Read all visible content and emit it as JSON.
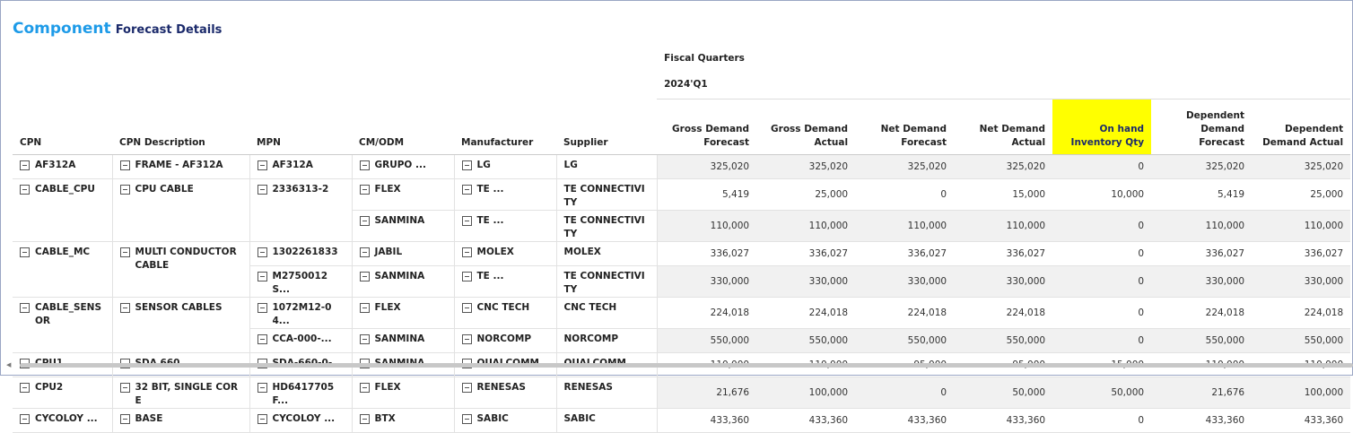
{
  "header": {
    "title_main": "Component",
    "title_sub": "Forecast Details"
  },
  "table": {
    "group_label": "Fiscal Quarters",
    "quarter": "2024'Q1",
    "columns": [
      "CPN",
      "CPN Description",
      "MPN",
      "CM/ODM",
      "Manufacturer",
      "Supplier",
      "Gross Demand Forecast",
      "Gross Demand Actual",
      "Net Demand Forecast",
      "Net Demand Actual",
      "On hand Inventory Qty",
      "Dependent Demand Forecast",
      "Dependent Demand Actual"
    ],
    "highlight_column": 10,
    "groups": [
      {
        "cpn": "AF312A",
        "description": "FRAME - AF312A",
        "mpns": [
          {
            "mpn": "AF312A",
            "rows": [
              {
                "cm": "GRUPO ...",
                "manufacturer": "LG",
                "supplier": "LG",
                "values": [
                  "325,020",
                  "325,020",
                  "325,020",
                  "325,020",
                  "0",
                  "325,020",
                  "325,020"
                ]
              }
            ]
          }
        ]
      },
      {
        "cpn": "CABLE_CPU",
        "description": "CPU CABLE",
        "mpns": [
          {
            "mpn": "2336313-2",
            "rows": [
              {
                "cm": "FLEX",
                "manufacturer": "TE ...",
                "supplier": "TE CONNECTIVITY",
                "values": [
                  "5,419",
                  "25,000",
                  "0",
                  "15,000",
                  "10,000",
                  "5,419",
                  "25,000"
                ]
              },
              {
                "cm": "SANMINA",
                "manufacturer": "TE ...",
                "supplier": "TE CONNECTIVITY",
                "values": [
                  "110,000",
                  "110,000",
                  "110,000",
                  "110,000",
                  "0",
                  "110,000",
                  "110,000"
                ]
              }
            ]
          }
        ]
      },
      {
        "cpn": "CABLE_MC",
        "description": "MULTI CONDUCTOR CABLE",
        "mpns": [
          {
            "mpn": "1302261833",
            "rows": [
              {
                "cm": "JABIL",
                "manufacturer": "MOLEX",
                "supplier": "MOLEX",
                "values": [
                  "336,027",
                  "336,027",
                  "336,027",
                  "336,027",
                  "0",
                  "336,027",
                  "336,027"
                ]
              }
            ]
          },
          {
            "mpn": "M2750012S...",
            "rows": [
              {
                "cm": "SANMINA",
                "manufacturer": "TE ...",
                "supplier": "TE CONNECTIVITY",
                "values": [
                  "330,000",
                  "330,000",
                  "330,000",
                  "330,000",
                  "0",
                  "330,000",
                  "330,000"
                ]
              }
            ]
          }
        ]
      },
      {
        "cpn": "CABLE_SENSOR",
        "description": "SENSOR CABLES",
        "mpns": [
          {
            "mpn": "1072M12-04...",
            "rows": [
              {
                "cm": "FLEX",
                "manufacturer": "CNC TECH",
                "supplier": "CNC TECH",
                "values": [
                  "224,018",
                  "224,018",
                  "224,018",
                  "224,018",
                  "0",
                  "224,018",
                  "224,018"
                ]
              }
            ]
          },
          {
            "mpn": "CCA-000-...",
            "rows": [
              {
                "cm": "SANMINA",
                "manufacturer": "NORCOMP",
                "supplier": "NORCOMP",
                "values": [
                  "550,000",
                  "550,000",
                  "550,000",
                  "550,000",
                  "0",
                  "550,000",
                  "550,000"
                ]
              }
            ]
          }
        ]
      },
      {
        "cpn": "CPU1",
        "description": "SDA 660 ...",
        "mpns": [
          {
            "mpn": "SDA-660-0-...",
            "rows": [
              {
                "cm": "SANMINA",
                "manufacturer": "QUALCOMM",
                "supplier": "QUALCOMM",
                "values": [
                  "110,000",
                  "110,000",
                  "95,000",
                  "95,000",
                  "15,000",
                  "110,000",
                  "110,000"
                ]
              }
            ]
          }
        ]
      },
      {
        "cpn": "CPU2",
        "description": "32 BIT, SINGLE CORE",
        "mpns": [
          {
            "mpn": "HD6417705F...",
            "rows": [
              {
                "cm": "FLEX",
                "manufacturer": "RENESAS",
                "supplier": "RENESAS",
                "values": [
                  "21,676",
                  "100,000",
                  "0",
                  "50,000",
                  "50,000",
                  "21,676",
                  "100,000"
                ]
              }
            ]
          }
        ]
      },
      {
        "cpn": "CYCOLOY ...",
        "description": "BASE",
        "mpns": [
          {
            "mpn": "CYCOLOY ...",
            "rows": [
              {
                "cm": "BTX",
                "manufacturer": "SABIC",
                "supplier": "SABIC",
                "values": [
                  "433,360",
                  "433,360",
                  "433,360",
                  "433,360",
                  "0",
                  "433,360",
                  "433,360"
                ]
              }
            ]
          }
        ]
      }
    ]
  }
}
